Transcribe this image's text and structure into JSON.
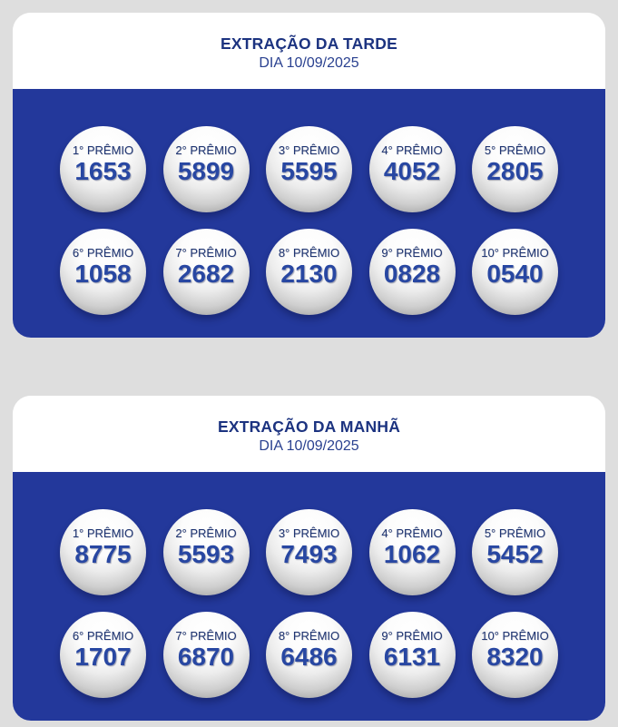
{
  "page": {
    "background_color": "#dedede"
  },
  "colors": {
    "card_body_blue": "#23389b",
    "title_blue": "#1c3380",
    "date_blue": "#2a4190",
    "ball_label_navy": "#203673",
    "ball_number_blue": "#2847a2"
  },
  "cards": [
    {
      "title": "EXTRAÇÃO DA TARDE",
      "date": "DIA 10/09/2025",
      "prizes": [
        {
          "label": "1° PRÊMIO",
          "number": "1653"
        },
        {
          "label": "2° PRÊMIO",
          "number": "5899"
        },
        {
          "label": "3° PRÊMIO",
          "number": "5595"
        },
        {
          "label": "4° PRÊMIO",
          "number": "4052"
        },
        {
          "label": "5° PRÊMIO",
          "number": "2805"
        },
        {
          "label": "6° PRÊMIO",
          "number": "1058"
        },
        {
          "label": "7° PRÊMIO",
          "number": "2682"
        },
        {
          "label": "8° PRÊMIO",
          "number": "2130"
        },
        {
          "label": "9° PRÊMIO",
          "number": "0828"
        },
        {
          "label": "10° PRÊMIO",
          "number": "0540"
        }
      ]
    },
    {
      "title": "EXTRAÇÃO DA MANHÃ",
      "date": "DIA 10/09/2025",
      "prizes": [
        {
          "label": "1° PRÊMIO",
          "number": "8775"
        },
        {
          "label": "2° PRÊMIO",
          "number": "5593"
        },
        {
          "label": "3° PRÊMIO",
          "number": "7493"
        },
        {
          "label": "4° PRÊMIO",
          "number": "1062"
        },
        {
          "label": "5° PRÊMIO",
          "number": "5452"
        },
        {
          "label": "6° PRÊMIO",
          "number": "1707"
        },
        {
          "label": "7° PRÊMIO",
          "number": "6870"
        },
        {
          "label": "8° PRÊMIO",
          "number": "6486"
        },
        {
          "label": "9° PRÊMIO",
          "number": "6131"
        },
        {
          "label": "10° PRÊMIO",
          "number": "8320"
        }
      ]
    }
  ]
}
